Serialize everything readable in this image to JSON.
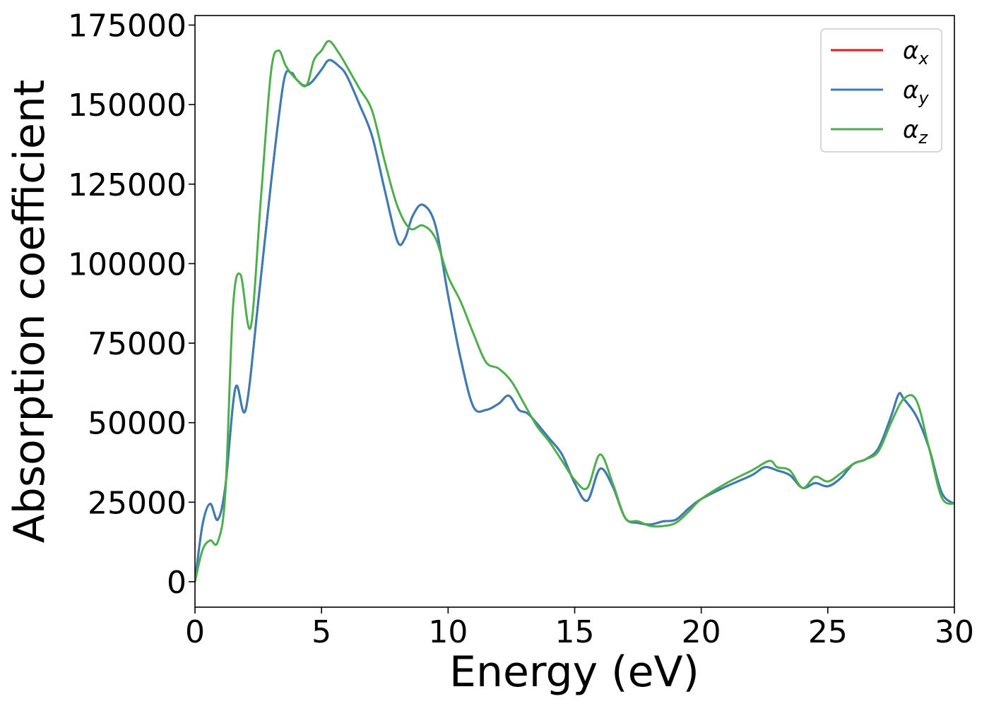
{
  "chart_data": {
    "type": "line",
    "title": "",
    "xlabel": "Energy (eV)",
    "ylabel": "Absorption coefficient",
    "xlim": [
      0,
      30
    ],
    "ylim": [
      -8000,
      178000
    ],
    "xticks": [
      0,
      5,
      10,
      15,
      20,
      25,
      30
    ],
    "yticks": [
      0,
      25000,
      50000,
      75000,
      100000,
      125000,
      150000,
      175000
    ],
    "grid": false,
    "legend_position": "top-right",
    "series": [
      {
        "name": "αx",
        "base": "α",
        "sub": "x",
        "color": "#e41a1c",
        "x": [
          0,
          0.3,
          0.6,
          0.9,
          1.2,
          1.6,
          2.0,
          2.5,
          3.0,
          3.5,
          3.8,
          4.0,
          4.3,
          4.6,
          5.0,
          5.3,
          5.7,
          6.0,
          6.5,
          7.0,
          7.5,
          8.0,
          8.3,
          8.6,
          9.0,
          9.5,
          10.0,
          10.5,
          11.0,
          11.5,
          12.0,
          12.4,
          12.8,
          13.2,
          14.0,
          14.5,
          15.0,
          15.5,
          16.0,
          16.5,
          17.0,
          17.5,
          18.0,
          18.5,
          19.0,
          19.5,
          20.0,
          21.0,
          22.0,
          22.5,
          23.0,
          23.5,
          24.0,
          24.5,
          25.0,
          25.5,
          26.0,
          26.5,
          27.0,
          27.5,
          27.8,
          28.0,
          28.5,
          29.0,
          29.5,
          30.0
        ],
        "y": [
          0,
          18000,
          24500,
          19500,
          30000,
          61000,
          54000,
          88000,
          125000,
          157000,
          160000,
          158000,
          156000,
          157000,
          161000,
          164000,
          162000,
          159000,
          150000,
          140000,
          123000,
          107000,
          108000,
          115000,
          118500,
          112000,
          90000,
          70000,
          55000,
          54000,
          56000,
          58500,
          54000,
          52500,
          45000,
          40000,
          31000,
          25500,
          35500,
          30000,
          20000,
          18500,
          18000,
          19000,
          19500,
          23000,
          26000,
          30000,
          33500,
          36000,
          35000,
          33500,
          29500,
          31000,
          30000,
          32500,
          37000,
          38500,
          42000,
          52000,
          59000,
          57500,
          52000,
          42000,
          28000,
          24500
        ]
      },
      {
        "name": "αy",
        "base": "α",
        "sub": "y",
        "color": "#377eb8",
        "x": [
          0,
          0.3,
          0.6,
          0.9,
          1.2,
          1.6,
          2.0,
          2.5,
          3.0,
          3.5,
          3.8,
          4.0,
          4.3,
          4.6,
          5.0,
          5.3,
          5.7,
          6.0,
          6.5,
          7.0,
          7.5,
          8.0,
          8.3,
          8.6,
          9.0,
          9.5,
          10.0,
          10.5,
          11.0,
          11.5,
          12.0,
          12.4,
          12.8,
          13.2,
          14.0,
          14.5,
          15.0,
          15.5,
          16.0,
          16.5,
          17.0,
          17.5,
          18.0,
          18.5,
          19.0,
          19.5,
          20.0,
          21.0,
          22.0,
          22.5,
          23.0,
          23.5,
          24.0,
          24.5,
          25.0,
          25.5,
          26.0,
          26.5,
          27.0,
          27.5,
          27.8,
          28.0,
          28.5,
          29.0,
          29.5,
          30.0
        ],
        "y": [
          0,
          18000,
          24500,
          19500,
          30000,
          61000,
          54000,
          88000,
          125000,
          157000,
          160000,
          158000,
          156000,
          157000,
          161000,
          164000,
          162000,
          159000,
          150000,
          140000,
          123000,
          107000,
          108000,
          115000,
          118500,
          112000,
          90000,
          70000,
          55000,
          54000,
          56000,
          58500,
          54000,
          52500,
          45000,
          40000,
          31000,
          25500,
          35500,
          30000,
          20000,
          18500,
          18000,
          19000,
          19500,
          23000,
          26000,
          30000,
          33500,
          36000,
          35000,
          33500,
          29500,
          31000,
          30000,
          32500,
          37000,
          38500,
          42000,
          52000,
          59000,
          57500,
          52000,
          42000,
          28000,
          24500
        ]
      },
      {
        "name": "αz",
        "base": "α",
        "sub": "z",
        "color": "#4daf4a",
        "x": [
          0,
          0.3,
          0.6,
          0.9,
          1.2,
          1.5,
          1.8,
          2.2,
          2.6,
          3.0,
          3.3,
          3.6,
          4.0,
          4.4,
          4.7,
          5.0,
          5.3,
          5.7,
          6.0,
          6.5,
          7.0,
          7.5,
          8.0,
          8.5,
          9.0,
          9.5,
          10.0,
          10.5,
          11.0,
          11.5,
          12.0,
          12.5,
          13.0,
          13.5,
          14.0,
          14.5,
          15.0,
          15.5,
          16.0,
          16.5,
          17.0,
          17.5,
          18.0,
          18.5,
          19.0,
          19.5,
          20.0,
          21.0,
          22.0,
          22.7,
          23.0,
          23.5,
          24.0,
          24.5,
          25.0,
          25.5,
          26.0,
          26.5,
          27.0,
          27.5,
          28.0,
          28.5,
          29.0,
          29.5,
          30.0
        ],
        "y": [
          0,
          10000,
          13000,
          12500,
          28000,
          86000,
          96500,
          80000,
          120000,
          160000,
          167000,
          162000,
          158000,
          156000,
          164000,
          167000,
          170000,
          166000,
          162000,
          155000,
          148000,
          132000,
          118000,
          111000,
          112000,
          108000,
          96000,
          88000,
          78000,
          69000,
          67000,
          63000,
          56000,
          49000,
          44000,
          38000,
          32000,
          29500,
          40000,
          31000,
          20000,
          19000,
          17500,
          17500,
          18500,
          22000,
          26000,
          31000,
          35000,
          38000,
          36000,
          35000,
          29500,
          33000,
          31500,
          34000,
          37000,
          38500,
          41000,
          50000,
          57500,
          57000,
          42000,
          26500,
          24500
        ]
      }
    ]
  }
}
